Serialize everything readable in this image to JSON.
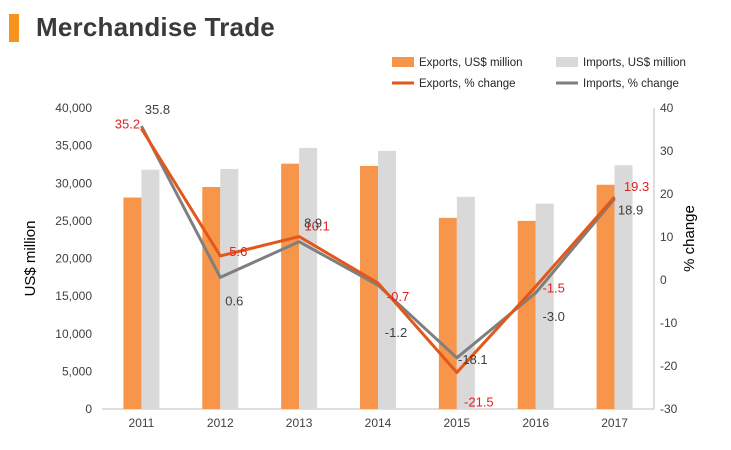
{
  "page": {
    "title": "Merchandise Trade"
  },
  "colors": {
    "title_bar": "#F7941D",
    "exports_bar": "#F7964A",
    "imports_bar": "#D9D9D9",
    "exports_line": "#E2571A",
    "imports_line": "#7F7F7F",
    "exports_label": "#E31E1E",
    "imports_label": "#404040",
    "axis_text": "#404040"
  },
  "chart_data": {
    "type": "bar",
    "categories": [
      "2011",
      "2012",
      "2013",
      "2014",
      "2015",
      "2016",
      "2017"
    ],
    "title": "",
    "xlabel": "",
    "ylabel": "US$ million",
    "y2label": "% change",
    "ylim": [
      0,
      40000
    ],
    "y2lim": [
      -30,
      40
    ],
    "yticks": [
      "0",
      "5,000",
      "10,000",
      "15,000",
      "20,000",
      "25,000",
      "30,000",
      "35,000",
      "40,000"
    ],
    "y2ticks": [
      "-30",
      "-20",
      "-10",
      "0",
      "10",
      "20",
      "30",
      "40"
    ],
    "legend_position": "top-right",
    "series": [
      {
        "name": "Exports, US$ million",
        "kind": "bar",
        "axis": "left",
        "values": [
          28100,
          29500,
          32600,
          32300,
          25400,
          25000,
          29800
        ]
      },
      {
        "name": "Imports, US$ million",
        "kind": "bar",
        "axis": "left",
        "values": [
          31800,
          31900,
          34700,
          34300,
          28200,
          27300,
          32400
        ]
      },
      {
        "name": "Exports, % change",
        "kind": "line",
        "axis": "right",
        "values": [
          35.2,
          5.6,
          10.1,
          -0.7,
          -21.5,
          -1.5,
          19.3
        ],
        "labels": [
          "35.2",
          "5.6",
          "10.1",
          "-0.7",
          "-21.5",
          "-1.5",
          "19.3"
        ]
      },
      {
        "name": "Imports, % change",
        "kind": "line",
        "axis": "right",
        "values": [
          35.8,
          0.6,
          8.9,
          -1.2,
          -18.1,
          -3.0,
          18.9
        ],
        "labels": [
          "35.8",
          "0.6",
          "8.9",
          "-1.2",
          "-18.1",
          "-3.0",
          "18.9"
        ]
      }
    ]
  }
}
